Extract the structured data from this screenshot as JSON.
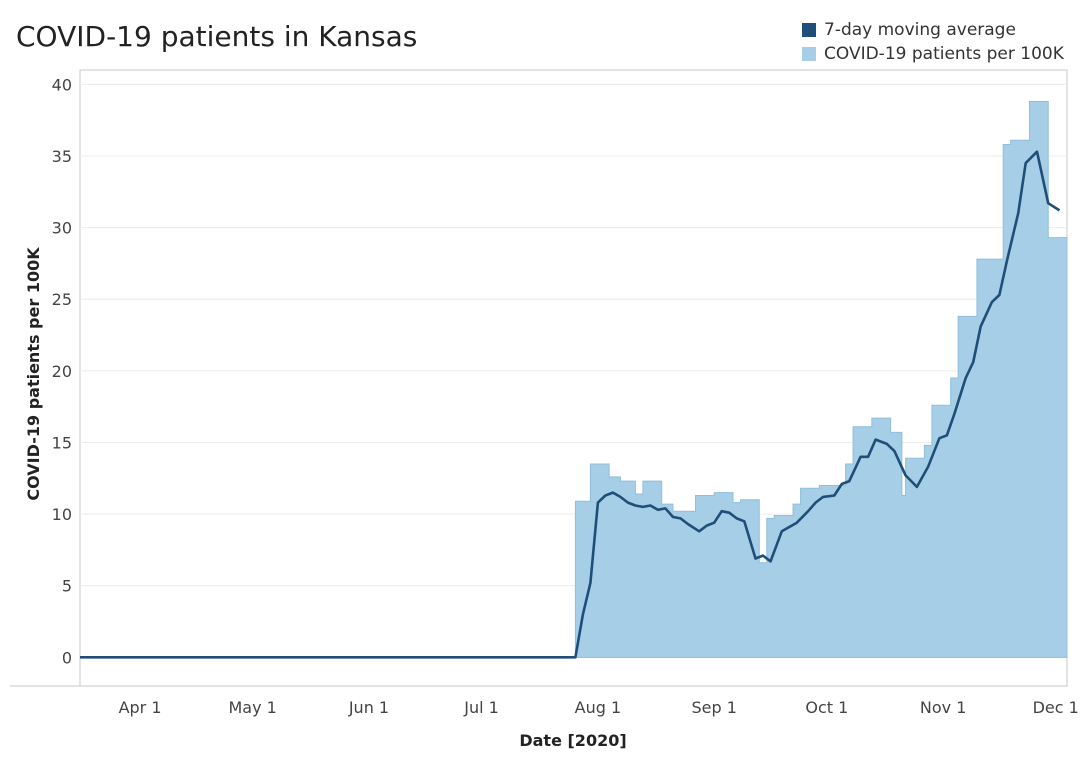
{
  "title": "COVID-19 patients in Kansas",
  "legend": {
    "items": [
      {
        "label": "7-day moving average",
        "color": "#1f4e79",
        "icon": "square-swatch"
      },
      {
        "label": "COVID-19 patients per 100K",
        "color": "#a6cee6",
        "icon": "square-swatch"
      }
    ]
  },
  "chart_data": {
    "type": "area",
    "title": "COVID-19 patients in Kansas",
    "xlabel": "Date [2020]",
    "ylabel": "COVID-19 patients per 100K",
    "x_range": [
      "2020-03-16",
      "2020-12-04"
    ],
    "ylim": [
      -2,
      41
    ],
    "y_ticks": [
      0,
      5,
      10,
      15,
      20,
      25,
      30,
      35,
      40
    ],
    "x_ticks": [
      {
        "date": "2020-04-01",
        "label": "Apr 1"
      },
      {
        "date": "2020-05-01",
        "label": "May 1"
      },
      {
        "date": "2020-06-01",
        "label": "Jun 1"
      },
      {
        "date": "2020-07-01",
        "label": "Jul 1"
      },
      {
        "date": "2020-08-01",
        "label": "Aug 1"
      },
      {
        "date": "2020-09-01",
        "label": "Sep 1"
      },
      {
        "date": "2020-10-01",
        "label": "Oct 1"
      },
      {
        "date": "2020-11-01",
        "label": "Nov 1"
      },
      {
        "date": "2020-12-01",
        "label": "Dec 1"
      }
    ],
    "grid": true,
    "legend_position": "top-right",
    "series": [
      {
        "name": "COVID-19 patients per 100K",
        "style": "step-area",
        "color": "#a6cee6",
        "points": [
          [
            "2020-03-16",
            0
          ],
          [
            "2020-07-25",
            0
          ],
          [
            "2020-07-26",
            10.9
          ],
          [
            "2020-07-30",
            13.5
          ],
          [
            "2020-08-04",
            12.6
          ],
          [
            "2020-08-07",
            12.3
          ],
          [
            "2020-08-11",
            11.4
          ],
          [
            "2020-08-13",
            12.3
          ],
          [
            "2020-08-18",
            10.7
          ],
          [
            "2020-08-21",
            10.2
          ],
          [
            "2020-08-27",
            11.3
          ],
          [
            "2020-09-01",
            11.5
          ],
          [
            "2020-09-06",
            10.8
          ],
          [
            "2020-09-08",
            11.0
          ],
          [
            "2020-09-13",
            6.6
          ],
          [
            "2020-09-15",
            9.7
          ],
          [
            "2020-09-17",
            9.9
          ],
          [
            "2020-09-22",
            10.7
          ],
          [
            "2020-09-24",
            11.8
          ],
          [
            "2020-09-29",
            12.0
          ],
          [
            "2020-10-06",
            13.5
          ],
          [
            "2020-10-08",
            16.1
          ],
          [
            "2020-10-13",
            16.7
          ],
          [
            "2020-10-18",
            15.7
          ],
          [
            "2020-10-21",
            11.3
          ],
          [
            "2020-10-22",
            13.9
          ],
          [
            "2020-10-27",
            14.8
          ],
          [
            "2020-10-29",
            17.6
          ],
          [
            "2020-11-03",
            19.5
          ],
          [
            "2020-11-05",
            23.8
          ],
          [
            "2020-11-10",
            27.8
          ],
          [
            "2020-11-17",
            35.8
          ],
          [
            "2020-11-19",
            36.1
          ],
          [
            "2020-11-24",
            38.8
          ],
          [
            "2020-11-29",
            29.3
          ],
          [
            "2020-12-04",
            29.3
          ]
        ]
      },
      {
        "name": "7-day moving average",
        "style": "line",
        "color": "#1f4e79",
        "points": [
          [
            "2020-03-16",
            0
          ],
          [
            "2020-07-26",
            0
          ],
          [
            "2020-07-28",
            3.0
          ],
          [
            "2020-07-30",
            5.2
          ],
          [
            "2020-08-01",
            10.8
          ],
          [
            "2020-08-03",
            11.3
          ],
          [
            "2020-08-05",
            11.5
          ],
          [
            "2020-08-07",
            11.2
          ],
          [
            "2020-08-09",
            10.8
          ],
          [
            "2020-08-11",
            10.6
          ],
          [
            "2020-08-13",
            10.5
          ],
          [
            "2020-08-15",
            10.6
          ],
          [
            "2020-08-17",
            10.3
          ],
          [
            "2020-08-19",
            10.4
          ],
          [
            "2020-08-21",
            9.8
          ],
          [
            "2020-08-23",
            9.7
          ],
          [
            "2020-08-25",
            9.3
          ],
          [
            "2020-08-28",
            8.8
          ],
          [
            "2020-08-30",
            9.2
          ],
          [
            "2020-09-01",
            9.4
          ],
          [
            "2020-09-03",
            10.2
          ],
          [
            "2020-09-05",
            10.1
          ],
          [
            "2020-09-07",
            9.7
          ],
          [
            "2020-09-09",
            9.5
          ],
          [
            "2020-09-12",
            6.9
          ],
          [
            "2020-09-14",
            7.1
          ],
          [
            "2020-09-16",
            6.7
          ],
          [
            "2020-09-19",
            8.8
          ],
          [
            "2020-09-21",
            9.1
          ],
          [
            "2020-09-23",
            9.4
          ],
          [
            "2020-09-26",
            10.2
          ],
          [
            "2020-09-28",
            10.8
          ],
          [
            "2020-09-30",
            11.2
          ],
          [
            "2020-10-03",
            11.3
          ],
          [
            "2020-10-05",
            12.1
          ],
          [
            "2020-10-07",
            12.3
          ],
          [
            "2020-10-10",
            14.0
          ],
          [
            "2020-10-12",
            14.0
          ],
          [
            "2020-10-14",
            15.2
          ],
          [
            "2020-10-17",
            14.9
          ],
          [
            "2020-10-19",
            14.4
          ],
          [
            "2020-10-22",
            12.7
          ],
          [
            "2020-10-25",
            11.9
          ],
          [
            "2020-10-28",
            13.3
          ],
          [
            "2020-10-31",
            15.3
          ],
          [
            "2020-11-02",
            15.5
          ],
          [
            "2020-11-04",
            17.0
          ],
          [
            "2020-11-07",
            19.5
          ],
          [
            "2020-11-09",
            20.6
          ],
          [
            "2020-11-11",
            23.1
          ],
          [
            "2020-11-14",
            24.8
          ],
          [
            "2020-11-16",
            25.3
          ],
          [
            "2020-11-18",
            27.7
          ],
          [
            "2020-11-21",
            31.0
          ],
          [
            "2020-11-23",
            34.5
          ],
          [
            "2020-11-26",
            35.3
          ],
          [
            "2020-11-29",
            31.7
          ],
          [
            "2020-12-02",
            31.2
          ]
        ]
      }
    ]
  }
}
